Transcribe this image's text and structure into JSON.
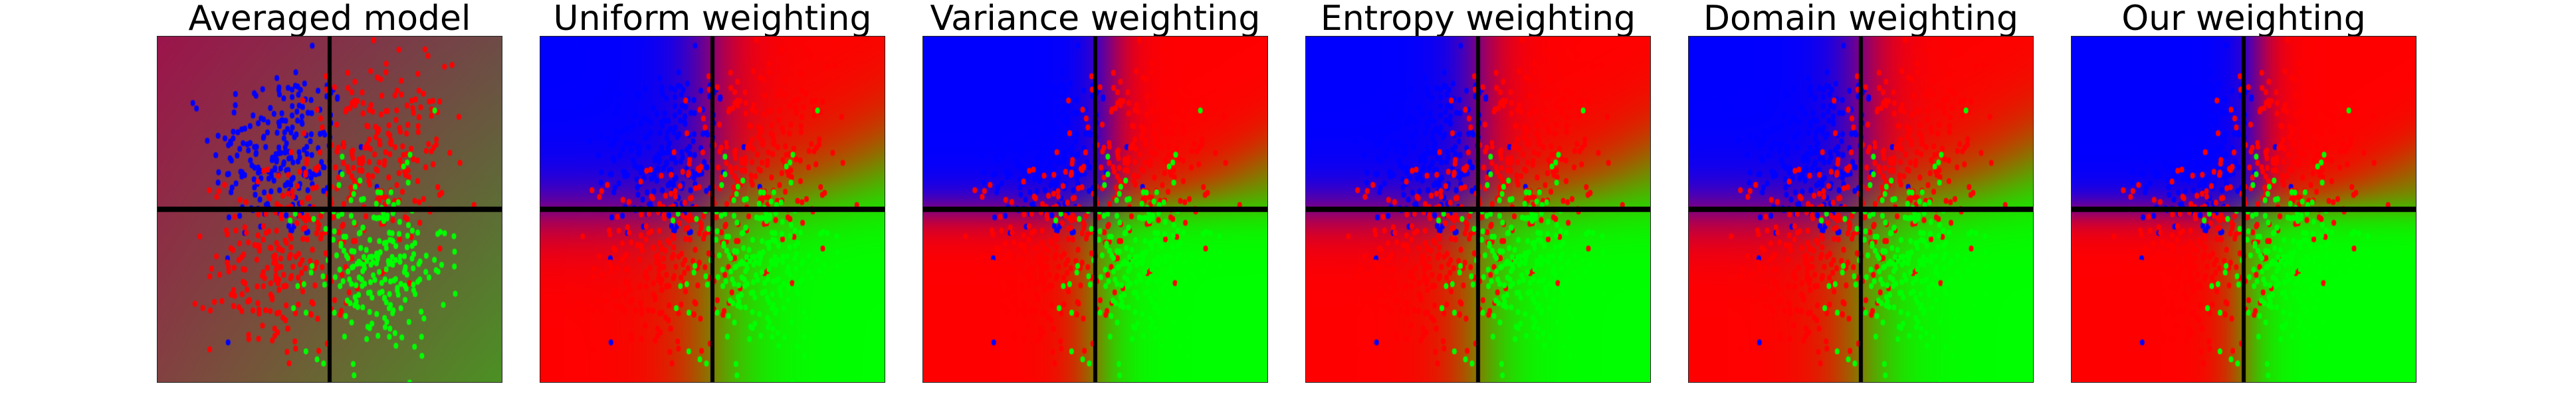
{
  "chart_data": {
    "type": "scatter",
    "panels": [
      {
        "title": "Averaged model",
        "background": "blended"
      },
      {
        "title": "Uniform weighting",
        "background": "decision-regions"
      },
      {
        "title": "Variance weighting",
        "background": "decision-regions"
      },
      {
        "title": "Entropy weighting",
        "background": "decision-regions"
      },
      {
        "title": "Domain weighting",
        "background": "decision-regions"
      },
      {
        "title": "Our weighting",
        "background": "decision-regions"
      }
    ],
    "classes": [
      {
        "color": "#0000ff",
        "region": "top-left"
      },
      {
        "color": "#ff0000",
        "region": "top-right and bottom-left"
      },
      {
        "color": "#00ff00",
        "region": "bottom-right"
      }
    ],
    "crosshair": {
      "x": 0,
      "y": 0
    },
    "ticks": "none",
    "legend": "none"
  }
}
